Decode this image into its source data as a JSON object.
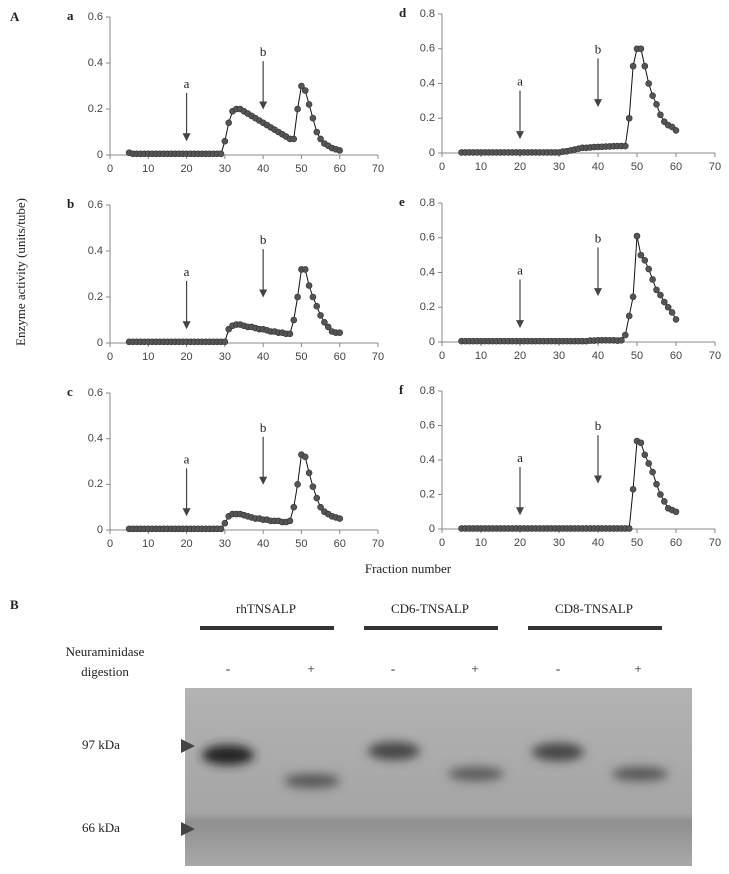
{
  "figure": {
    "panel_a": "A",
    "ylabel": "Enzyme activity (units/tube)",
    "xlabel": "Fraction number"
  },
  "chart_data": [
    {
      "type": "line",
      "title": "a",
      "color": "#555555",
      "x": [
        5,
        6,
        7,
        8,
        9,
        10,
        11,
        12,
        13,
        14,
        15,
        16,
        17,
        18,
        19,
        20,
        21,
        22,
        23,
        24,
        25,
        26,
        27,
        28,
        29,
        30,
        31,
        32,
        33,
        34,
        35,
        36,
        37,
        38,
        39,
        40,
        41,
        42,
        43,
        44,
        45,
        46,
        47,
        48,
        49,
        50,
        51,
        52,
        53,
        54,
        55,
        56,
        57,
        58,
        59,
        60
      ],
      "values": [
        0.01,
        0.005,
        0.005,
        0.005,
        0.005,
        0.005,
        0.005,
        0.005,
        0.005,
        0.005,
        0.005,
        0.005,
        0.005,
        0.005,
        0.005,
        0.005,
        0.005,
        0.005,
        0.005,
        0.005,
        0.005,
        0.005,
        0.005,
        0.005,
        0.005,
        0.06,
        0.14,
        0.19,
        0.2,
        0.2,
        0.19,
        0.18,
        0.17,
        0.16,
        0.15,
        0.14,
        0.13,
        0.12,
        0.11,
        0.1,
        0.09,
        0.08,
        0.07,
        0.07,
        0.2,
        0.3,
        0.28,
        0.22,
        0.16,
        0.1,
        0.07,
        0.05,
        0.04,
        0.03,
        0.025,
        0.02
      ],
      "xlim": [
        0,
        70
      ],
      "xticks": [
        0,
        10,
        20,
        30,
        40,
        50,
        60,
        70
      ],
      "ylim": [
        0,
        0.6
      ],
      "yticks": [
        0,
        0.2,
        0.4,
        0.6
      ],
      "annotations": [
        {
          "text": "a",
          "x": 20
        },
        {
          "text": "b",
          "x": 40
        }
      ]
    },
    {
      "type": "line",
      "title": "b",
      "color": "#555555",
      "x": [
        5,
        6,
        7,
        8,
        9,
        10,
        11,
        12,
        13,
        14,
        15,
        16,
        17,
        18,
        19,
        20,
        21,
        22,
        23,
        24,
        25,
        26,
        27,
        28,
        29,
        30,
        31,
        32,
        33,
        34,
        35,
        36,
        37,
        38,
        39,
        40,
        41,
        42,
        43,
        44,
        45,
        46,
        47,
        48,
        49,
        50,
        51,
        52,
        53,
        54,
        55,
        56,
        57,
        58,
        59,
        60
      ],
      "values": [
        0.005,
        0.005,
        0.005,
        0.005,
        0.005,
        0.005,
        0.005,
        0.005,
        0.005,
        0.005,
        0.005,
        0.005,
        0.005,
        0.005,
        0.005,
        0.005,
        0.005,
        0.005,
        0.005,
        0.005,
        0.005,
        0.005,
        0.005,
        0.005,
        0.005,
        0.005,
        0.06,
        0.075,
        0.08,
        0.08,
        0.075,
        0.07,
        0.07,
        0.065,
        0.06,
        0.06,
        0.055,
        0.05,
        0.05,
        0.045,
        0.045,
        0.04,
        0.04,
        0.1,
        0.2,
        0.32,
        0.32,
        0.25,
        0.2,
        0.16,
        0.12,
        0.09,
        0.07,
        0.05,
        0.045,
        0.045
      ],
      "xlim": [
        0,
        70
      ],
      "xticks": [
        0,
        10,
        20,
        30,
        40,
        50,
        60,
        70
      ],
      "ylim": [
        0,
        0.6
      ],
      "yticks": [
        0,
        0.2,
        0.4,
        0.6
      ],
      "annotations": [
        {
          "text": "a",
          "x": 20
        },
        {
          "text": "b",
          "x": 40
        }
      ]
    },
    {
      "type": "line",
      "title": "c",
      "color": "#555555",
      "x": [
        5,
        6,
        7,
        8,
        9,
        10,
        11,
        12,
        13,
        14,
        15,
        16,
        17,
        18,
        19,
        20,
        21,
        22,
        23,
        24,
        25,
        26,
        27,
        28,
        29,
        30,
        31,
        32,
        33,
        34,
        35,
        36,
        37,
        38,
        39,
        40,
        41,
        42,
        43,
        44,
        45,
        46,
        47,
        48,
        49,
        50,
        51,
        52,
        53,
        54,
        55,
        56,
        57,
        58,
        59,
        60
      ],
      "values": [
        0.005,
        0.005,
        0.005,
        0.005,
        0.005,
        0.005,
        0.005,
        0.005,
        0.005,
        0.005,
        0.005,
        0.005,
        0.005,
        0.005,
        0.005,
        0.005,
        0.005,
        0.005,
        0.005,
        0.005,
        0.005,
        0.005,
        0.005,
        0.005,
        0.005,
        0.03,
        0.06,
        0.07,
        0.07,
        0.07,
        0.065,
        0.06,
        0.055,
        0.05,
        0.05,
        0.045,
        0.045,
        0.04,
        0.04,
        0.04,
        0.035,
        0.035,
        0.04,
        0.1,
        0.2,
        0.33,
        0.32,
        0.25,
        0.19,
        0.14,
        0.1,
        0.08,
        0.07,
        0.06,
        0.055,
        0.05
      ],
      "xlim": [
        0,
        70
      ],
      "xticks": [
        0,
        10,
        20,
        30,
        40,
        50,
        60,
        70
      ],
      "ylim": [
        0,
        0.6
      ],
      "yticks": [
        0,
        0.2,
        0.4,
        0.6
      ],
      "annotations": [
        {
          "text": "a",
          "x": 20
        },
        {
          "text": "b",
          "x": 40
        }
      ]
    },
    {
      "type": "line",
      "title": "d",
      "color": "#555555",
      "x": [
        5,
        6,
        7,
        8,
        9,
        10,
        11,
        12,
        13,
        14,
        15,
        16,
        17,
        18,
        19,
        20,
        21,
        22,
        23,
        24,
        25,
        26,
        27,
        28,
        29,
        30,
        31,
        32,
        33,
        34,
        35,
        36,
        37,
        38,
        39,
        40,
        41,
        42,
        43,
        44,
        45,
        46,
        47,
        48,
        49,
        50,
        51,
        52,
        53,
        54,
        55,
        56,
        57,
        58,
        59,
        60
      ],
      "values": [
        0.003,
        0.003,
        0.003,
        0.003,
        0.003,
        0.003,
        0.003,
        0.003,
        0.003,
        0.003,
        0.003,
        0.003,
        0.003,
        0.003,
        0.003,
        0.003,
        0.003,
        0.003,
        0.003,
        0.003,
        0.003,
        0.003,
        0.003,
        0.003,
        0.003,
        0.003,
        0.008,
        0.01,
        0.015,
        0.02,
        0.025,
        0.03,
        0.03,
        0.032,
        0.034,
        0.035,
        0.036,
        0.037,
        0.038,
        0.039,
        0.04,
        0.04,
        0.04,
        0.2,
        0.5,
        0.6,
        0.6,
        0.5,
        0.4,
        0.33,
        0.28,
        0.22,
        0.18,
        0.16,
        0.15,
        0.13
      ],
      "xlim": [
        0,
        70
      ],
      "xticks": [
        0,
        10,
        20,
        30,
        40,
        50,
        60,
        70
      ],
      "ylim": [
        0,
        0.8
      ],
      "yticks": [
        0,
        0.2,
        0.4,
        0.6,
        0.8
      ],
      "annotations": [
        {
          "text": "a",
          "x": 20
        },
        {
          "text": "b",
          "x": 40
        }
      ]
    },
    {
      "type": "line",
      "title": "e",
      "color": "#555555",
      "x": [
        5,
        6,
        7,
        8,
        9,
        10,
        11,
        12,
        13,
        14,
        15,
        16,
        17,
        18,
        19,
        20,
        21,
        22,
        23,
        24,
        25,
        26,
        27,
        28,
        29,
        30,
        31,
        32,
        33,
        34,
        35,
        36,
        37,
        38,
        39,
        40,
        41,
        42,
        43,
        44,
        45,
        46,
        47,
        48,
        49,
        50,
        51,
        52,
        53,
        54,
        55,
        56,
        57,
        58,
        59,
        60
      ],
      "values": [
        0.005,
        0.005,
        0.005,
        0.005,
        0.005,
        0.005,
        0.005,
        0.005,
        0.005,
        0.005,
        0.005,
        0.005,
        0.005,
        0.005,
        0.005,
        0.005,
        0.005,
        0.005,
        0.005,
        0.005,
        0.005,
        0.005,
        0.005,
        0.005,
        0.005,
        0.005,
        0.005,
        0.005,
        0.005,
        0.005,
        0.005,
        0.005,
        0.005,
        0.008,
        0.008,
        0.01,
        0.01,
        0.01,
        0.01,
        0.01,
        0.008,
        0.01,
        0.04,
        0.15,
        0.26,
        0.61,
        0.5,
        0.47,
        0.42,
        0.36,
        0.3,
        0.27,
        0.23,
        0.2,
        0.17,
        0.13
      ],
      "xlim": [
        0,
        70
      ],
      "xticks": [
        0,
        10,
        20,
        30,
        40,
        50,
        60,
        70
      ],
      "ylim": [
        0,
        0.8
      ],
      "yticks": [
        0,
        0.2,
        0.4,
        0.6,
        0.8
      ],
      "annotations": [
        {
          "text": "a",
          "x": 20
        },
        {
          "text": "b",
          "x": 40
        }
      ]
    },
    {
      "type": "line",
      "title": "f",
      "color": "#555555",
      "x": [
        5,
        6,
        7,
        8,
        9,
        10,
        11,
        12,
        13,
        14,
        15,
        16,
        17,
        18,
        19,
        20,
        21,
        22,
        23,
        24,
        25,
        26,
        27,
        28,
        29,
        30,
        31,
        32,
        33,
        34,
        35,
        36,
        37,
        38,
        39,
        40,
        41,
        42,
        43,
        44,
        45,
        46,
        47,
        48,
        49,
        50,
        51,
        52,
        53,
        54,
        55,
        56,
        57,
        58,
        59,
        60
      ],
      "values": [
        0.003,
        0.003,
        0.003,
        0.003,
        0.003,
        0.003,
        0.003,
        0.003,
        0.003,
        0.003,
        0.003,
        0.003,
        0.003,
        0.003,
        0.003,
        0.003,
        0.003,
        0.003,
        0.003,
        0.003,
        0.003,
        0.003,
        0.003,
        0.003,
        0.003,
        0.003,
        0.003,
        0.003,
        0.003,
        0.003,
        0.003,
        0.003,
        0.003,
        0.003,
        0.003,
        0.003,
        0.003,
        0.003,
        0.003,
        0.003,
        0.003,
        0.003,
        0.003,
        0.003,
        0.23,
        0.51,
        0.5,
        0.43,
        0.38,
        0.33,
        0.26,
        0.2,
        0.16,
        0.12,
        0.11,
        0.1
      ],
      "xlim": [
        0,
        70
      ],
      "xticks": [
        0,
        10,
        20,
        30,
        40,
        50,
        60,
        70
      ],
      "ylim": [
        0,
        0.8
      ],
      "yticks": [
        0,
        0.2,
        0.4,
        0.6,
        0.8
      ],
      "annotations": [
        {
          "text": "a",
          "x": 20
        },
        {
          "text": "b",
          "x": 40
        }
      ]
    }
  ],
  "gel": {
    "panel": "B",
    "samples": [
      "rhTNSALP",
      "CD6-TNSALP",
      "CD8-TNSALP"
    ],
    "treatment": [
      "Neuraminidase",
      "digestion"
    ],
    "lanes": [
      "-",
      "+",
      "-",
      "+",
      "-",
      "+"
    ],
    "markers": [
      "97 kDa",
      "66 kDa"
    ]
  }
}
